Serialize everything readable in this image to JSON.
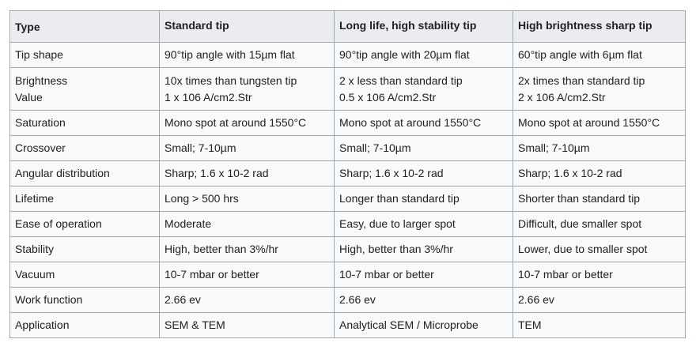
{
  "table": {
    "header": [
      "Type",
      "Standard tip",
      "Long life, high stability tip",
      "High brightness sharp tip"
    ],
    "rows": [
      [
        "Tip shape",
        "90°tip angle with 15µm flat",
        "90°tip angle with 20µm flat",
        "60°tip angle with 6µm flat"
      ],
      [
        [
          "Brightness",
          "Value"
        ],
        [
          "10x times than tungsten tip",
          "1 x 106 A/cm2.Str"
        ],
        [
          "2 x less than standard tip",
          "0.5 x 106 A/cm2.Str"
        ],
        [
          "2x times than standard tip",
          "2 x 106 A/cm2.Str"
        ]
      ],
      [
        "Saturation",
        "Mono spot at around 1550°C",
        "Mono spot at around 1550°C",
        "Mono spot at around 1550°C"
      ],
      [
        "Crossover",
        "Small; 7-10µm",
        "Small; 7-10µm",
        "Small; 7-10µm"
      ],
      [
        "Angular distribution",
        "Sharp; 1.6 x 10-2 rad",
        "Sharp; 1.6 x 10-2 rad",
        "Sharp; 1.6 x 10-2 rad"
      ],
      [
        "Lifetime",
        "Long > 500 hrs",
        "Longer than standard tip",
        "Shorter than standard tip"
      ],
      [
        "Ease of operation",
        "Moderate",
        "Easy, due to larger spot",
        "Difficult, due smaller spot"
      ],
      [
        "Stability",
        "High, better than 3%/hr",
        "High, better than 3%/hr",
        "Lower, due to smaller spot"
      ],
      [
        "Vacuum",
        "10-7 mbar or better",
        "10-7 mbar or better",
        "10-7 mbar or better"
      ],
      [
        "Work function",
        "2.66 ev",
        "2.66 ev",
        "2.66 ev"
      ],
      [
        "Application",
        "SEM & TEM",
        "Analytical SEM / Microprobe",
        "TEM"
      ]
    ]
  }
}
